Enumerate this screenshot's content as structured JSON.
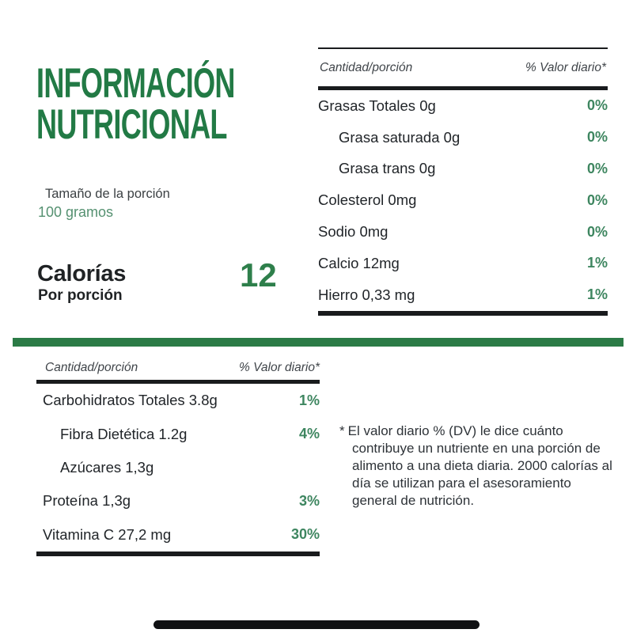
{
  "header": {
    "title_line1": "INFORMACIÓN",
    "title_line2": "NUTRICIONAL"
  },
  "serving": {
    "label": "Tamaño de la porción",
    "value": "100 gramos"
  },
  "calories": {
    "label": "Calorías",
    "sublabel": "Por porción",
    "value": "12"
  },
  "table_right": {
    "col_amount": "Cantidad/porción",
    "col_dv": "% Valor diario*",
    "rows": [
      {
        "label": "Grasas Totales 0g",
        "dv": "0%",
        "indent": false
      },
      {
        "label": "Grasa saturada 0g",
        "dv": "0%",
        "indent": true
      },
      {
        "label": "Grasa trans 0g",
        "dv": "0%",
        "indent": true
      },
      {
        "label": "Colesterol 0mg",
        "dv": "0%",
        "indent": false
      },
      {
        "label": "Sodio 0mg",
        "dv": "0%",
        "indent": false
      },
      {
        "label": "Calcio 12mg",
        "dv": "1%",
        "indent": false
      },
      {
        "label": "Hierro 0,33 mg",
        "dv": "1%",
        "indent": false
      }
    ]
  },
  "table_left": {
    "col_amount": "Cantidad/porción",
    "col_dv": "% Valor diario*",
    "rows": [
      {
        "label": "Carbohidratos Totales 3.8g",
        "dv": "1%",
        "indent": false
      },
      {
        "label": "Fibra Dietética 1.2g",
        "dv": "4%",
        "indent": true
      },
      {
        "label": "Azúcares 1,3g",
        "dv": "",
        "indent": true
      },
      {
        "label": "Proteína 1,3g",
        "dv": "3%",
        "indent": false
      },
      {
        "label": "Vitamina C 27,2 mg",
        "dv": "30%",
        "indent": false
      }
    ]
  },
  "footnote": {
    "marker": "*",
    "text": "El valor diario % (DV) le dice cuánto contribuye un nutriente en una porción de alimento a una dieta diaria. 2000 calorías al día se utilizan para el asesoramiento general de nutrición."
  },
  "colors": {
    "accent_green": "#227a45",
    "value_green": "#3e8660",
    "divider_green": "#2b7b46",
    "text_dark": "#212529",
    "rule_black": "#191b1d"
  }
}
